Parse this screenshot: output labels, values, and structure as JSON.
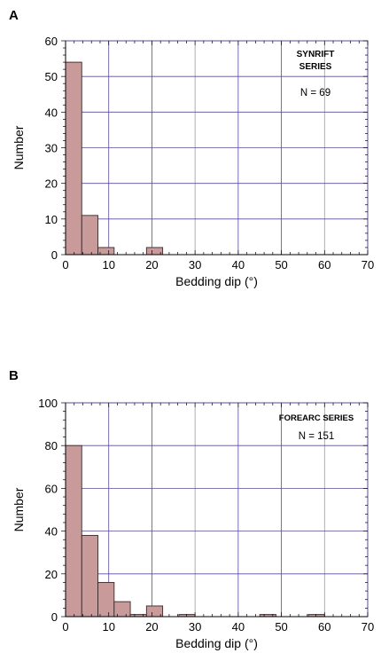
{
  "chart_data": [
    {
      "type": "bar",
      "panel_label": "A",
      "title": "",
      "xlabel": "Bedding dip (°)",
      "ylabel": "Number",
      "xlim": [
        0,
        70
      ],
      "ylim": [
        0,
        60
      ],
      "x_ticks": [
        0,
        10,
        20,
        30,
        40,
        50,
        60,
        70
      ],
      "y_ticks": [
        0,
        10,
        20,
        30,
        40,
        50,
        60
      ],
      "bin_width": 3.75,
      "bins": [
        {
          "start": 0,
          "end": 3.75,
          "value": 54
        },
        {
          "start": 3.75,
          "end": 7.5,
          "value": 11
        },
        {
          "start": 7.5,
          "end": 11.25,
          "value": 2
        },
        {
          "start": 11.25,
          "end": 15,
          "value": 0
        },
        {
          "start": 15,
          "end": 18.75,
          "value": 0
        },
        {
          "start": 18.75,
          "end": 22.5,
          "value": 2
        }
      ],
      "annotation_lines": [
        "SYNRIFT",
        "SERIES"
      ],
      "n_label": "N = 69",
      "grid": true,
      "bar_color": "#c99a9a"
    },
    {
      "type": "bar",
      "panel_label": "B",
      "title": "",
      "xlabel": "Bedding dip (°)",
      "ylabel": "Number",
      "xlim": [
        0,
        70
      ],
      "ylim": [
        0,
        100
      ],
      "x_ticks": [
        0,
        10,
        20,
        30,
        40,
        50,
        60,
        70
      ],
      "y_ticks": [
        0,
        20,
        40,
        60,
        80,
        100
      ],
      "bin_width": 3.75,
      "bins": [
        {
          "start": 0,
          "end": 3.75,
          "value": 80
        },
        {
          "start": 3.75,
          "end": 7.5,
          "value": 38
        },
        {
          "start": 7.5,
          "end": 11.25,
          "value": 16
        },
        {
          "start": 11.25,
          "end": 15,
          "value": 7
        },
        {
          "start": 15,
          "end": 18.75,
          "value": 1
        },
        {
          "start": 18.75,
          "end": 22.5,
          "value": 5
        },
        {
          "start": 26.25,
          "end": 30,
          "value": 1
        },
        {
          "start": 45,
          "end": 48.75,
          "value": 1
        },
        {
          "start": 56.25,
          "end": 60,
          "value": 1
        }
      ],
      "annotation_lines": [
        "FOREARC SERIES"
      ],
      "n_label": "N = 151",
      "grid": true,
      "bar_color": "#c99a9a"
    }
  ]
}
